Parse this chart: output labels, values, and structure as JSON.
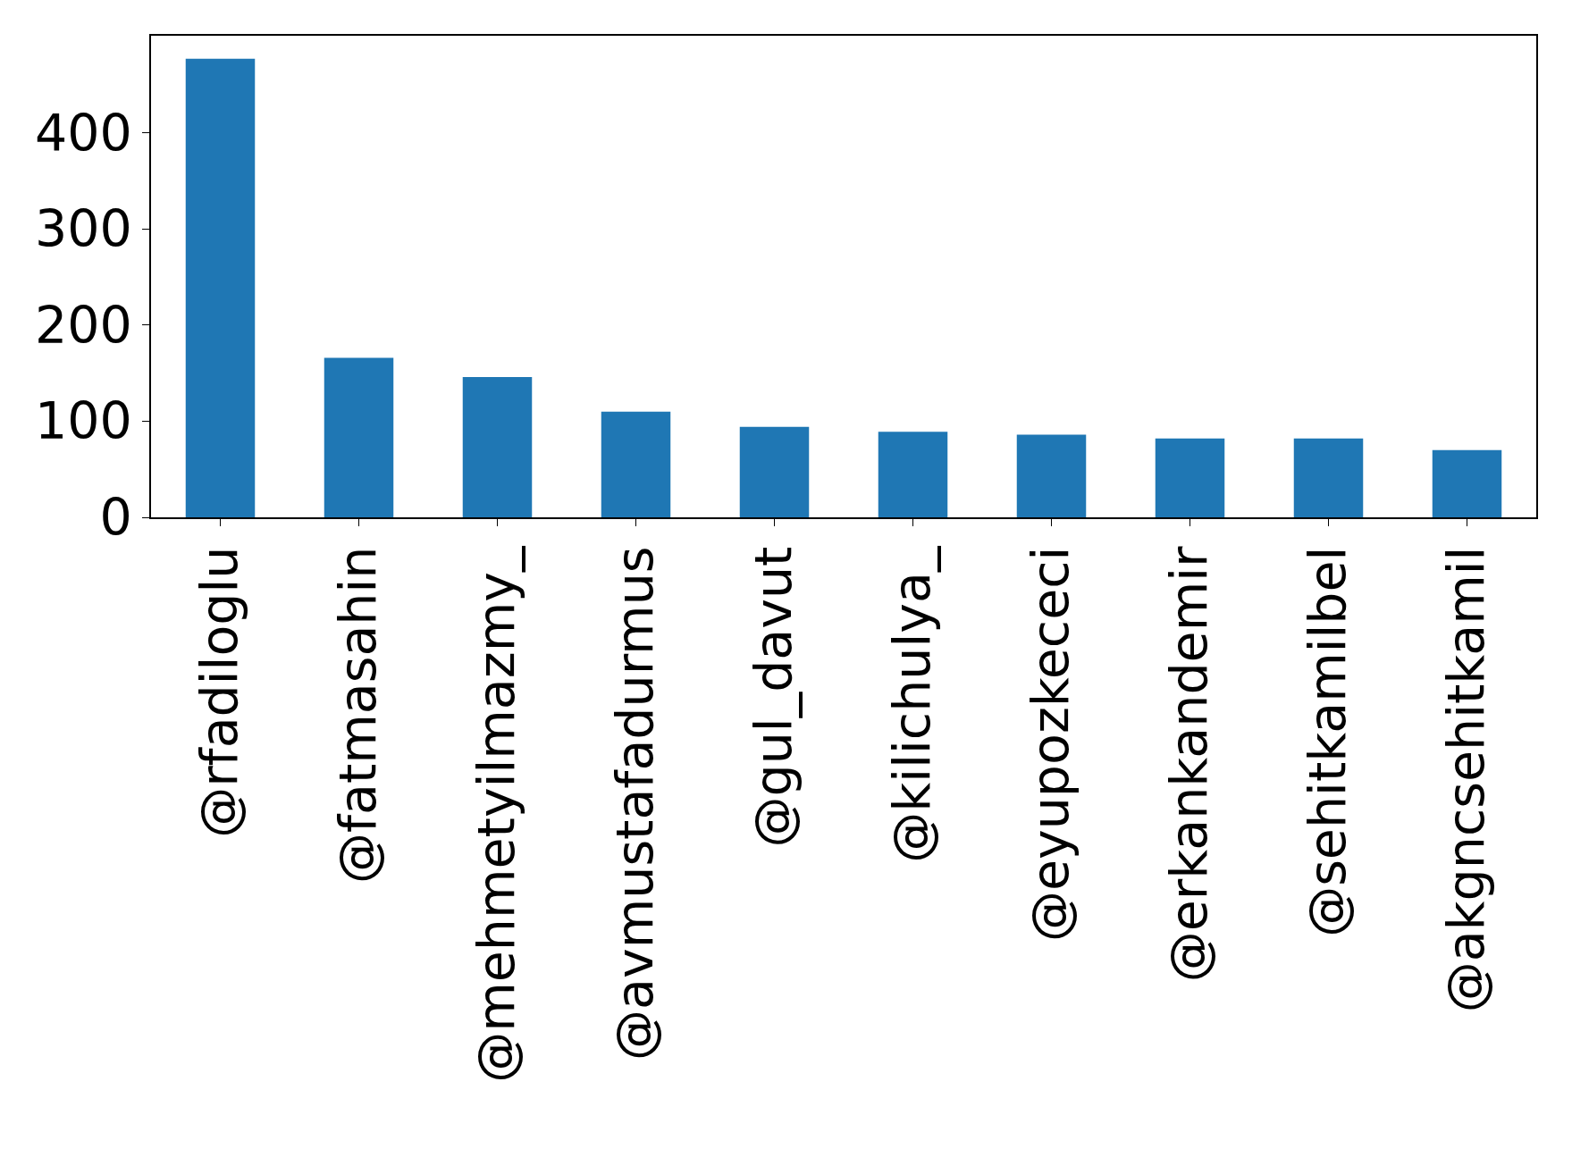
{
  "chart_data": {
    "type": "bar",
    "categories": [
      "@rfadiloglu",
      "@fatmasahin",
      "@mehmetyilmazmy_",
      "@avmustafadurmus",
      "@gul_davut",
      "@kilichulya_",
      "@eyupozkececi",
      "@erkankandemir",
      "@sehitkamilbel",
      "@akgncsehitkamil"
    ],
    "values": [
      477,
      166,
      146,
      110,
      94,
      89,
      86,
      82,
      82,
      70
    ],
    "color": "#1f77b4",
    "ylim": [
      0,
      501
    ],
    "yticks": [
      0,
      100,
      200,
      300,
      400
    ],
    "legend": false
  }
}
